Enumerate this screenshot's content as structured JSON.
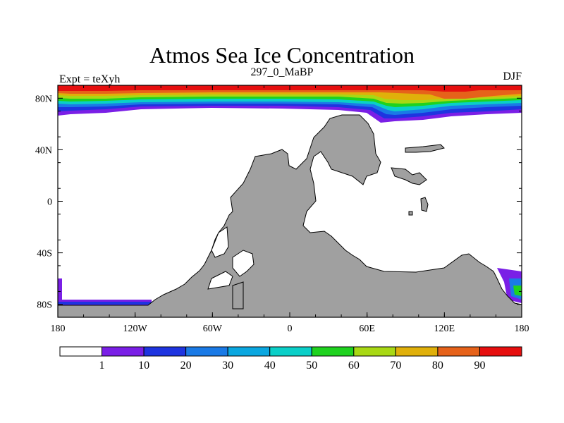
{
  "title": "Atmos Sea Ice Concentration",
  "left_label": "Expt = teXyh",
  "center_label": "297_0_MaBP",
  "right_label": "DJF",
  "axes": {
    "x_ticks": [
      {
        "value": -180,
        "label": "180"
      },
      {
        "value": -120,
        "label": "120W"
      },
      {
        "value": -60,
        "label": "60W"
      },
      {
        "value": 0,
        "label": "0"
      },
      {
        "value": 60,
        "label": "60E"
      },
      {
        "value": 120,
        "label": "120E"
      },
      {
        "value": 180,
        "label": "180"
      }
    ],
    "y_ticks": [
      {
        "value": 80,
        "label": "80N"
      },
      {
        "value": 40,
        "label": "40N"
      },
      {
        "value": 0,
        "label": "0"
      },
      {
        "value": -40,
        "label": "40S"
      },
      {
        "value": -80,
        "label": "80S"
      }
    ],
    "lon_range": [
      -180,
      180
    ],
    "lat_range": [
      -90,
      90
    ]
  },
  "colorbar": {
    "colors": [
      "#ffffff",
      "#7a1fe6",
      "#1e34e0",
      "#1a7ae6",
      "#0aa7e0",
      "#0acfc8",
      "#1fd21f",
      "#a8d814",
      "#e0b00a",
      "#e6621a",
      "#e60f0f"
    ],
    "labels": [
      "1",
      "10",
      "20",
      "30",
      "40",
      "50",
      "60",
      "70",
      "80",
      "90"
    ]
  },
  "colors": {
    "land": "#a0a0a0",
    "frame": "#000000"
  }
}
